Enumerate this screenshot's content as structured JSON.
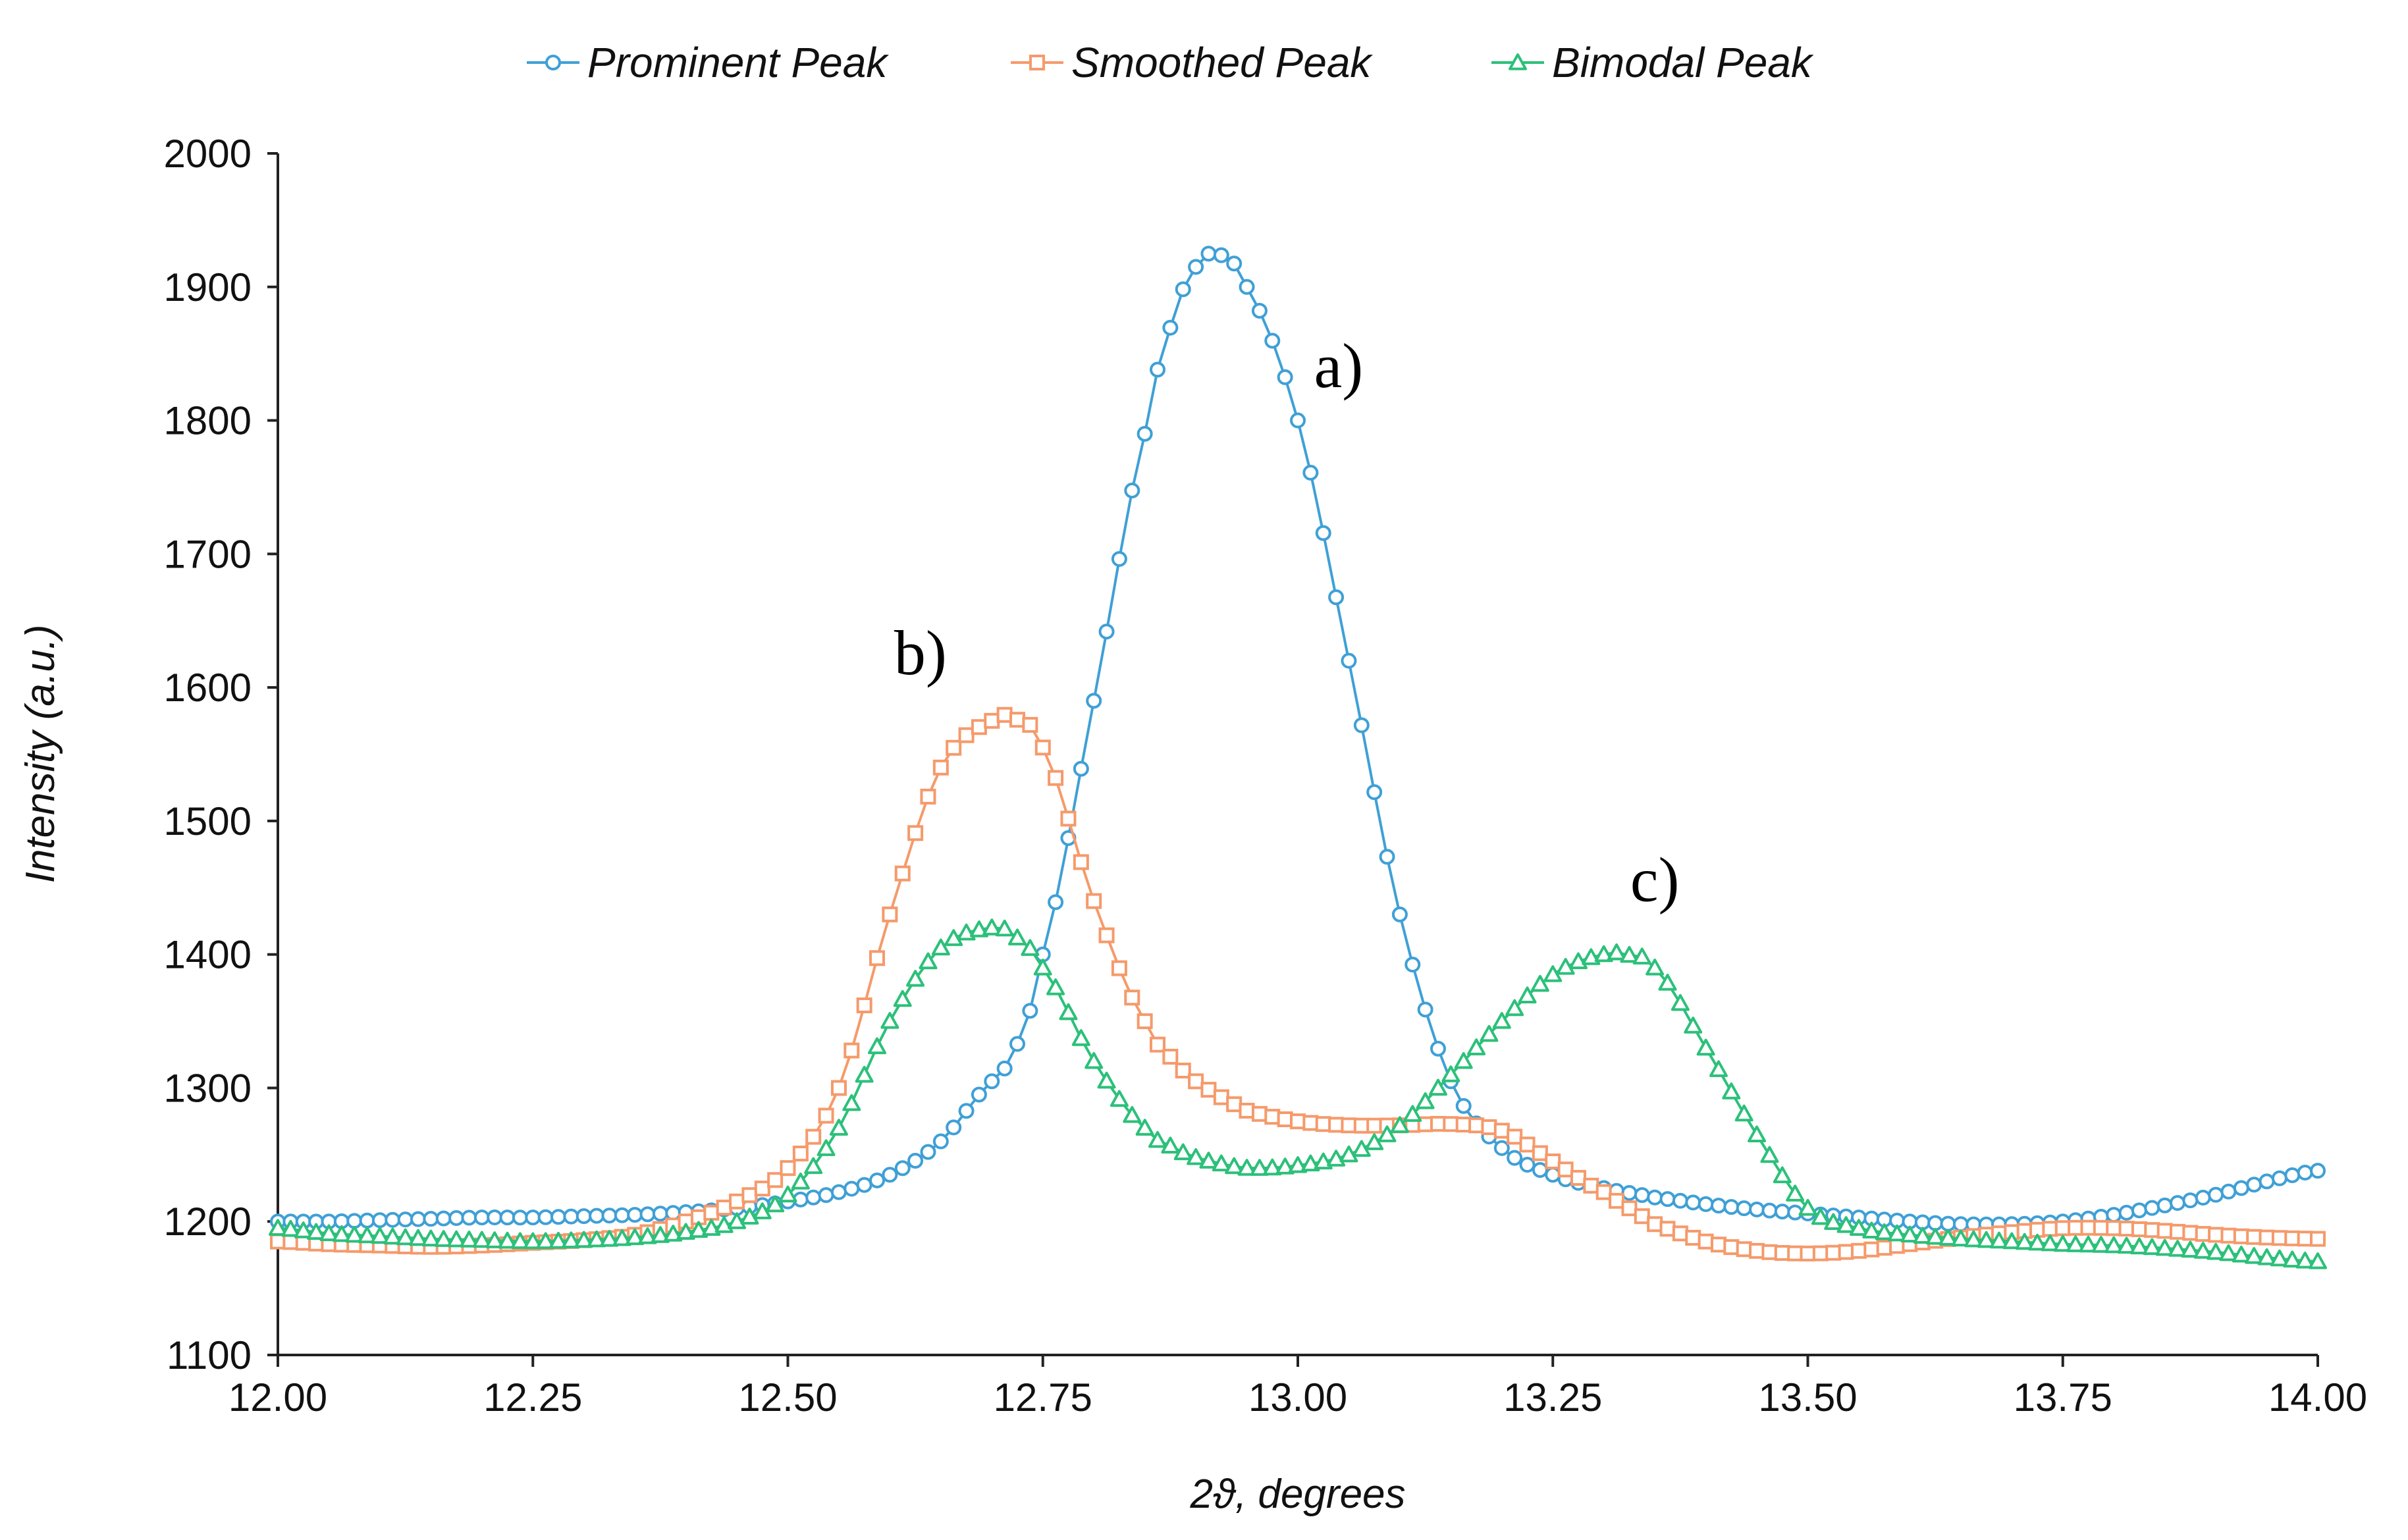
{
  "chart_data": {
    "type": "line",
    "title": "",
    "xlabel": "2ϑ, degrees",
    "ylabel": "Intensity (a.u.)",
    "xlim": [
      12.0,
      14.0
    ],
    "ylim": [
      1100,
      2000
    ],
    "xticks": [
      "12.00",
      "12.25",
      "12.50",
      "12.75",
      "13.00",
      "13.25",
      "13.50",
      "13.75",
      "14.00"
    ],
    "yticks": [
      "1100",
      "1200",
      "1300",
      "1400",
      "1500",
      "1600",
      "1700",
      "1800",
      "1900",
      "2000"
    ],
    "grid": false,
    "legend_position": "top-center",
    "x": [
      12.0,
      12.05,
      12.1,
      12.15,
      12.2,
      12.25,
      12.3,
      12.35,
      12.4,
      12.45,
      12.5,
      12.55,
      12.6,
      12.65,
      12.7,
      12.72,
      12.75,
      12.8,
      12.85,
      12.88,
      12.9,
      12.92,
      12.95,
      13.0,
      13.05,
      13.1,
      13.15,
      13.2,
      13.25,
      13.3,
      13.32,
      13.35,
      13.4,
      13.45,
      13.5,
      13.55,
      13.6,
      13.65,
      13.7,
      13.75,
      13.8,
      13.85,
      13.9,
      13.95,
      14.0
    ],
    "series": [
      {
        "name": "Prominent Peak",
        "color": "#3fa0d6",
        "marker": "circle",
        "values": [
          1200,
          1200,
          1201,
          1202,
          1203,
          1203,
          1204,
          1205,
          1207,
          1210,
          1215,
          1222,
          1235,
          1260,
          1305,
          1325,
          1400,
          1590,
          1790,
          1880,
          1915,
          1925,
          1900,
          1800,
          1620,
          1430,
          1305,
          1255,
          1235,
          1225,
          1222,
          1218,
          1213,
          1209,
          1206,
          1203,
          1200,
          1198,
          1198,
          1200,
          1205,
          1212,
          1220,
          1230,
          1238
        ]
      },
      {
        "name": "Smoothed Peak",
        "color": "#f59a6b",
        "marker": "square",
        "values": [
          1185,
          1183,
          1182,
          1181,
          1182,
          1184,
          1186,
          1190,
          1200,
          1215,
          1240,
          1300,
          1430,
          1540,
          1575,
          1577,
          1555,
          1440,
          1350,
          1320,
          1305,
          1295,
          1283,
          1275,
          1272,
          1272,
          1273,
          1268,
          1245,
          1222,
          1212,
          1198,
          1185,
          1178,
          1176,
          1178,
          1183,
          1188,
          1192,
          1195,
          1195,
          1193,
          1190,
          1188,
          1187
        ]
      },
      {
        "name": "Bimodal Peak",
        "color": "#2cc07a",
        "marker": "triangle",
        "values": [
          1195,
          1191,
          1189,
          1187,
          1186,
          1185,
          1186,
          1188,
          1192,
          1200,
          1220,
          1270,
          1350,
          1405,
          1420,
          1415,
          1390,
          1320,
          1270,
          1255,
          1248,
          1244,
          1240,
          1242,
          1250,
          1272,
          1310,
          1350,
          1385,
          1400,
          1400,
          1390,
          1330,
          1265,
          1210,
          1195,
          1190,
          1187,
          1185,
          1183,
          1182,
          1180,
          1177,
          1173,
          1170
        ]
      }
    ],
    "annotations": [
      {
        "text": "a)",
        "x": 13.04,
        "y": 1825
      },
      {
        "text": "b)",
        "x": 12.63,
        "y": 1610
      },
      {
        "text": "c)",
        "x": 13.35,
        "y": 1440
      }
    ]
  }
}
